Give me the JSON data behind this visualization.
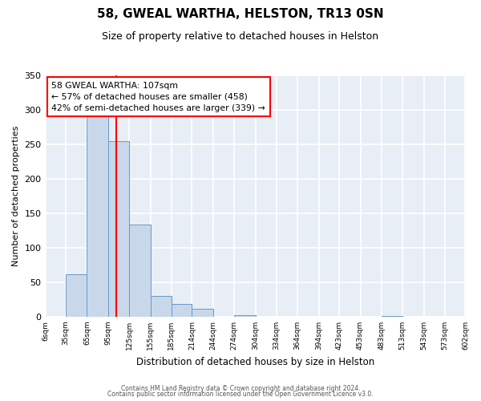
{
  "title": "58, GWEAL WARTHA, HELSTON, TR13 0SN",
  "subtitle": "Size of property relative to detached houses in Helston",
  "xlabel": "Distribution of detached houses by size in Helston",
  "ylabel": "Number of detached properties",
  "bar_color": "#c8d8ea",
  "bar_edge_color": "#6699cc",
  "background_color": "#e8eef5",
  "grid_color": "white",
  "red_line_x": 107,
  "annotation_title": "58 GWEAL WARTHA: 107sqm",
  "annotation_line1": "← 57% of detached houses are smaller (458)",
  "annotation_line2": "42% of semi-detached houses are larger (339) →",
  "heights": [
    0,
    62,
    291,
    255,
    134,
    30,
    18,
    11,
    0,
    2,
    0,
    0,
    0,
    0,
    0,
    0,
    1,
    0,
    0,
    0
  ],
  "tick_positions": [
    6,
    35,
    65,
    95,
    125,
    155,
    185,
    214,
    244,
    274,
    304,
    334,
    364,
    394,
    423,
    453,
    483,
    513,
    543,
    573,
    602
  ],
  "tick_labels": [
    "6sqm",
    "35sqm",
    "65sqm",
    "95sqm",
    "125sqm",
    "155sqm",
    "185sqm",
    "214sqm",
    "244sqm",
    "274sqm",
    "304sqm",
    "334sqm",
    "364sqm",
    "394sqm",
    "423sqm",
    "453sqm",
    "483sqm",
    "513sqm",
    "543sqm",
    "573sqm",
    "602sqm"
  ],
  "ylim": [
    0,
    350
  ],
  "yticks": [
    0,
    50,
    100,
    150,
    200,
    250,
    300,
    350
  ],
  "footer1": "Contains HM Land Registry data © Crown copyright and database right 2024.",
  "footer2": "Contains public sector information licensed under the Open Government Licence v3.0."
}
